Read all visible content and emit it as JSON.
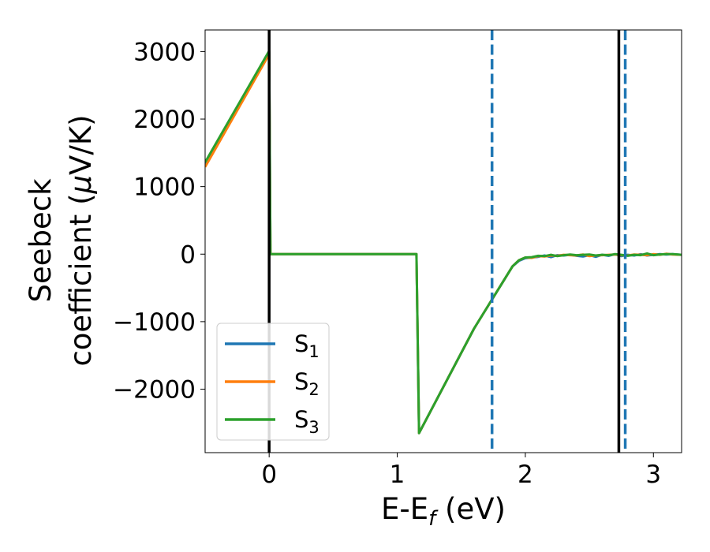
{
  "chart_data": {
    "type": "line",
    "xlabel": {
      "main": "E-E",
      "sub": "f",
      "tail": " (eV)"
    },
    "ylabel": {
      "line1": "Seebeck",
      "line2_text": "coefficient  (",
      "line2_mu": "μ",
      "line2_tail": "V/K)"
    },
    "xlim": [
      -0.5,
      3.22
    ],
    "ylim": [
      -2940,
      3320
    ],
    "xticks": [
      0,
      1,
      2,
      3
    ],
    "xtick_labels": [
      "0",
      "1",
      "2",
      "3"
    ],
    "yticks": [
      -2000,
      -1000,
      0,
      1000,
      2000,
      3000
    ],
    "ytick_labels": [
      "−2000",
      "−1000",
      "0",
      "1000",
      "2000",
      "3000"
    ],
    "grid": false,
    "legend_position": "lower-left",
    "series": [
      {
        "name": "S",
        "sub": "1",
        "color": "#1f77b4",
        "x": [
          -0.5,
          0.0,
          0.01,
          1.15,
          1.17,
          1.6,
          1.9,
          1.95,
          2.0,
          2.05,
          2.1,
          2.15,
          2.2,
          2.25,
          2.3,
          2.35,
          2.4,
          2.45,
          2.5,
          2.55,
          2.6,
          2.65,
          2.7,
          2.75,
          2.8,
          2.85,
          2.9,
          2.95,
          3.0,
          3.05,
          3.1,
          3.15,
          3.22
        ],
        "y": [
          1330,
          2990,
          0,
          0,
          -2650,
          -1100,
          -180,
          -100,
          -60,
          -50,
          -40,
          -20,
          -45,
          -15,
          -20,
          -10,
          -25,
          -35,
          -15,
          -40,
          -10,
          -25,
          0,
          -30,
          -10,
          -20,
          0,
          -20,
          -10,
          0,
          -5,
          0,
          -10
        ]
      },
      {
        "name": "S",
        "sub": "2",
        "color": "#ff7f0e",
        "x": [
          -0.5,
          0.0,
          0.01,
          1.15,
          1.17,
          1.6,
          1.9,
          1.95,
          2.0,
          2.05,
          2.1,
          2.15,
          2.2,
          2.25,
          2.3,
          2.35,
          2.4,
          2.45,
          2.5,
          2.55,
          2.6,
          2.65,
          2.7,
          2.75,
          2.8,
          2.85,
          2.9,
          2.95,
          3.0,
          3.05,
          3.1,
          3.15,
          3.22
        ],
        "y": [
          1290,
          2960,
          0,
          0,
          -2650,
          -1100,
          -180,
          -90,
          -50,
          -55,
          -30,
          -35,
          -20,
          -25,
          -10,
          -15,
          -20,
          -5,
          -30,
          -20,
          -15,
          -10,
          -5,
          -15,
          -20,
          -5,
          -10,
          -15,
          0,
          -10,
          5,
          -5,
          -10
        ]
      },
      {
        "name": "S",
        "sub": "3",
        "color": "#2ca02c",
        "x": [
          -0.5,
          0.0,
          0.01,
          1.15,
          1.17,
          1.6,
          1.9,
          1.95,
          2.0,
          2.05,
          2.1,
          2.15,
          2.2,
          2.25,
          2.3,
          2.35,
          2.4,
          2.45,
          2.5,
          2.55,
          2.6,
          2.65,
          2.7,
          2.75,
          2.8,
          2.85,
          2.9,
          2.95,
          3.0,
          3.05,
          3.1,
          3.15,
          3.22
        ],
        "y": [
          1360,
          3010,
          0,
          0,
          -2650,
          -1100,
          -180,
          -90,
          -50,
          -45,
          -25,
          -30,
          -10,
          -30,
          -15,
          -5,
          -15,
          -10,
          -5,
          -20,
          -10,
          -15,
          0,
          -10,
          -25,
          -10,
          -15,
          10,
          -15,
          -5,
          0,
          0,
          -10
        ]
      }
    ],
    "vertical_lines": [
      {
        "x": 0.0,
        "style": "solid",
        "color": "#000000"
      },
      {
        "x": 2.73,
        "style": "solid",
        "color": "#000000"
      },
      {
        "x": 1.74,
        "style": "dashed",
        "color": "#1f77b4"
      },
      {
        "x": 2.78,
        "style": "dashed",
        "color": "#1f77b4"
      }
    ]
  }
}
